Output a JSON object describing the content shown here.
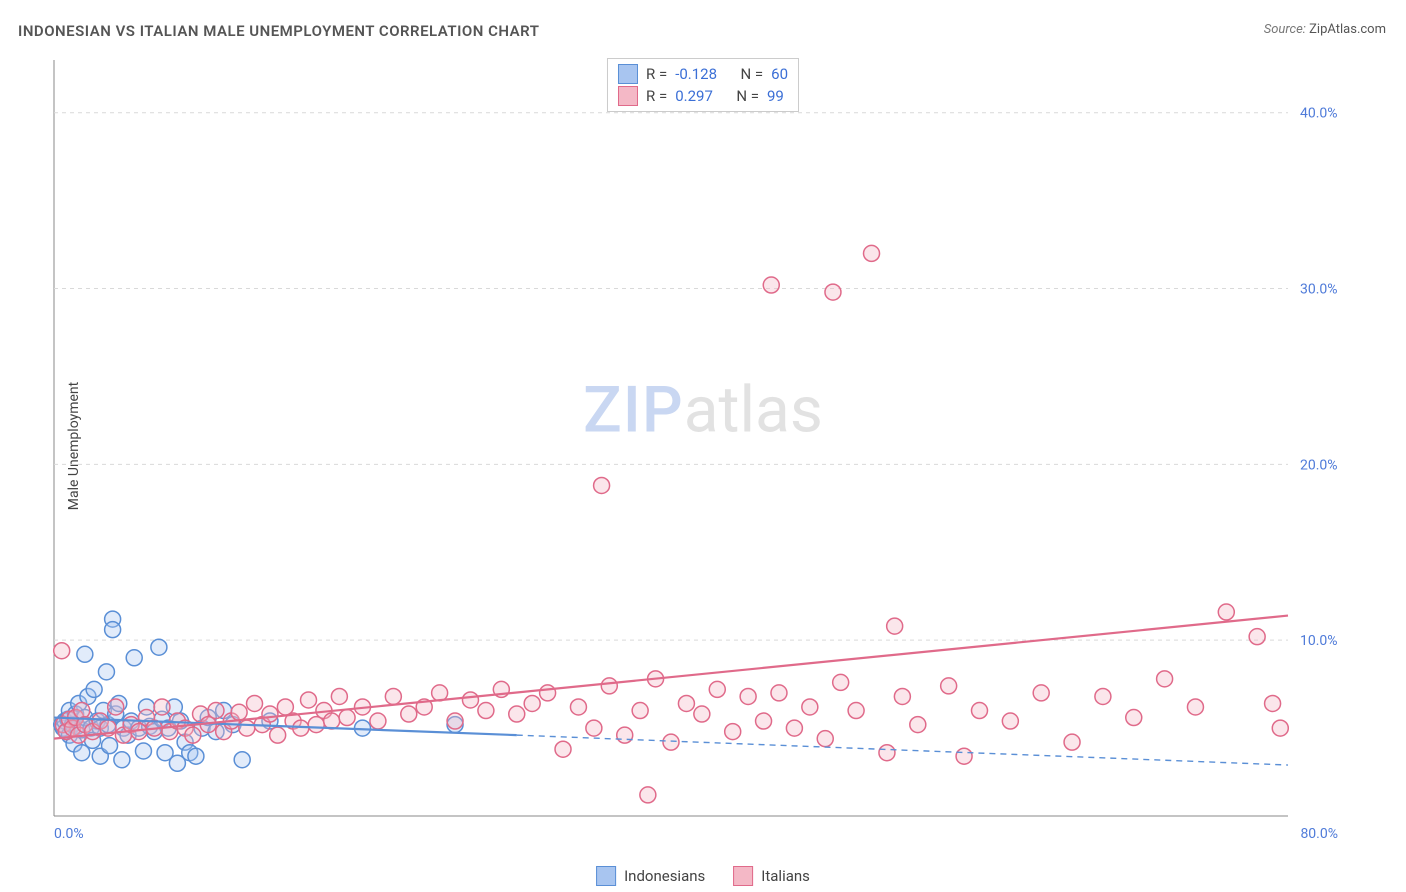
{
  "title": "INDONESIAN VS ITALIAN MALE UNEMPLOYMENT CORRELATION CHART",
  "source_label": "Source:",
  "source_value": "ZipAtlas.com",
  "watermark_zip": "ZIP",
  "watermark_atlas": "atlas",
  "chart": {
    "type": "scatter",
    "ylabel": "Male Unemployment",
    "xlim": [
      0,
      80
    ],
    "ylim": [
      0,
      43
    ],
    "xticks": [
      {
        "v": 0,
        "label": "0.0%"
      },
      {
        "v": 80,
        "label": "80.0%"
      }
    ],
    "yticks": [
      {
        "v": 10,
        "label": "10.0%"
      },
      {
        "v": 20,
        "label": "20.0%"
      },
      {
        "v": 30,
        "label": "30.0%"
      },
      {
        "v": 40,
        "label": "40.0%"
      }
    ],
    "background_color": "#ffffff",
    "grid_color": "#d9d9d9",
    "grid_dash": "4,4",
    "axis_color": "#888888",
    "tick_label_color": "#4f7bd9",
    "label_fontsize": 14,
    "marker_radius": 8,
    "marker_stroke_width": 1.5,
    "marker_fill_opacity": 0.35,
    "trend_line_width": 2.2,
    "legend_bottom": [
      {
        "label": "Indonesians",
        "fill": "#a8c5f0",
        "stroke": "#5a8fd6"
      },
      {
        "label": "Italians",
        "fill": "#f4b8c6",
        "stroke": "#e06a8a"
      }
    ],
    "series": [
      {
        "name": "Indonesians",
        "fill": "#a8c5f0",
        "stroke": "#5a8fd6",
        "R_label": "R =",
        "R": "-0.128",
        "N_label": "N =",
        "N": "60",
        "trend": {
          "x1": 0,
          "y1": 5.6,
          "x2": 30,
          "y2": 4.6,
          "dash_after_x": 30,
          "x3": 80,
          "y3": 2.9,
          "color": "#5a8fd6"
        },
        "points": [
          [
            0.5,
            5.2
          ],
          [
            0.6,
            5.0
          ],
          [
            0.7,
            5.4
          ],
          [
            0.8,
            4.8
          ],
          [
            0.9,
            5.5
          ],
          [
            1.0,
            4.6
          ],
          [
            1.0,
            6.0
          ],
          [
            1.2,
            5.2
          ],
          [
            1.3,
            4.1
          ],
          [
            1.4,
            5.8
          ],
          [
            1.5,
            5.1
          ],
          [
            1.6,
            6.4
          ],
          [
            1.8,
            4.9
          ],
          [
            1.8,
            3.6
          ],
          [
            2.0,
            5.6
          ],
          [
            2.0,
            9.2
          ],
          [
            2.2,
            6.8
          ],
          [
            2.4,
            5.0
          ],
          [
            2.5,
            4.3
          ],
          [
            2.6,
            7.2
          ],
          [
            2.8,
            5.4
          ],
          [
            3.0,
            5.0
          ],
          [
            3.0,
            3.4
          ],
          [
            3.2,
            6.0
          ],
          [
            3.4,
            8.2
          ],
          [
            3.5,
            5.2
          ],
          [
            3.6,
            4.0
          ],
          [
            3.8,
            11.2
          ],
          [
            3.8,
            10.6
          ],
          [
            4.0,
            5.8
          ],
          [
            4.2,
            6.4
          ],
          [
            4.4,
            3.2
          ],
          [
            4.5,
            5.0
          ],
          [
            4.8,
            4.6
          ],
          [
            5.0,
            5.4
          ],
          [
            5.2,
            9.0
          ],
          [
            5.5,
            5.0
          ],
          [
            5.8,
            3.7
          ],
          [
            6.0,
            6.2
          ],
          [
            6.2,
            5.1
          ],
          [
            6.5,
            4.8
          ],
          [
            6.8,
            9.6
          ],
          [
            7.0,
            5.5
          ],
          [
            7.2,
            3.6
          ],
          [
            7.4,
            5.0
          ],
          [
            7.8,
            6.2
          ],
          [
            8.0,
            3.0
          ],
          [
            8.2,
            5.4
          ],
          [
            8.5,
            4.2
          ],
          [
            8.8,
            3.6
          ],
          [
            9.2,
            3.4
          ],
          [
            9.6,
            5.0
          ],
          [
            10.0,
            5.6
          ],
          [
            10.5,
            4.8
          ],
          [
            11.0,
            6.0
          ],
          [
            11.6,
            5.2
          ],
          [
            12.2,
            3.2
          ],
          [
            14.0,
            5.4
          ],
          [
            20.0,
            5.0
          ],
          [
            26.0,
            5.2
          ]
        ]
      },
      {
        "name": "Italians",
        "fill": "#f4b8c6",
        "stroke": "#e06a8a",
        "R_label": "R =",
        "R": "0.297",
        "N_label": "N =",
        "N": "99",
        "trend": {
          "x1": 0,
          "y1": 4.4,
          "x2": 80,
          "y2": 11.4,
          "color": "#e06a8a"
        },
        "points": [
          [
            0.5,
            9.4
          ],
          [
            0.6,
            5.2
          ],
          [
            0.8,
            4.8
          ],
          [
            1.0,
            5.5
          ],
          [
            1.2,
            5.0
          ],
          [
            1.4,
            5.6
          ],
          [
            1.6,
            4.6
          ],
          [
            1.8,
            6.0
          ],
          [
            2.0,
            5.2
          ],
          [
            2.5,
            4.8
          ],
          [
            3.0,
            5.4
          ],
          [
            3.5,
            5.0
          ],
          [
            4.0,
            6.2
          ],
          [
            4.5,
            4.6
          ],
          [
            5.0,
            5.2
          ],
          [
            5.5,
            4.8
          ],
          [
            6.0,
            5.6
          ],
          [
            6.5,
            5.0
          ],
          [
            7.0,
            6.2
          ],
          [
            7.5,
            4.8
          ],
          [
            8.0,
            5.4
          ],
          [
            8.5,
            5.0
          ],
          [
            9.0,
            4.6
          ],
          [
            9.5,
            5.8
          ],
          [
            10.0,
            5.2
          ],
          [
            10.5,
            6.0
          ],
          [
            11.0,
            4.8
          ],
          [
            11.5,
            5.4
          ],
          [
            12.0,
            5.9
          ],
          [
            12.5,
            5.0
          ],
          [
            13.0,
            6.4
          ],
          [
            13.5,
            5.2
          ],
          [
            14.0,
            5.8
          ],
          [
            14.5,
            4.6
          ],
          [
            15.0,
            6.2
          ],
          [
            15.5,
            5.4
          ],
          [
            16.0,
            5.0
          ],
          [
            16.5,
            6.6
          ],
          [
            17.0,
            5.2
          ],
          [
            17.5,
            6.0
          ],
          [
            18.0,
            5.4
          ],
          [
            18.5,
            6.8
          ],
          [
            19.0,
            5.6
          ],
          [
            20.0,
            6.2
          ],
          [
            21.0,
            5.4
          ],
          [
            22.0,
            6.8
          ],
          [
            23.0,
            5.8
          ],
          [
            24.0,
            6.2
          ],
          [
            25.0,
            7.0
          ],
          [
            26.0,
            5.4
          ],
          [
            27.0,
            6.6
          ],
          [
            28.0,
            6.0
          ],
          [
            29.0,
            7.2
          ],
          [
            30.0,
            5.8
          ],
          [
            31.0,
            6.4
          ],
          [
            32.0,
            7.0
          ],
          [
            33.0,
            3.8
          ],
          [
            34.0,
            6.2
          ],
          [
            35.0,
            5.0
          ],
          [
            35.5,
            18.8
          ],
          [
            36.0,
            7.4
          ],
          [
            37.0,
            4.6
          ],
          [
            38.0,
            6.0
          ],
          [
            38.5,
            1.2
          ],
          [
            39.0,
            7.8
          ],
          [
            40.0,
            4.2
          ],
          [
            41.0,
            6.4
          ],
          [
            42.0,
            5.8
          ],
          [
            43.0,
            7.2
          ],
          [
            44.0,
            4.8
          ],
          [
            45.0,
            6.8
          ],
          [
            46.0,
            5.4
          ],
          [
            46.5,
            30.2
          ],
          [
            47.0,
            7.0
          ],
          [
            48.0,
            5.0
          ],
          [
            49.0,
            6.2
          ],
          [
            50.0,
            4.4
          ],
          [
            50.5,
            29.8
          ],
          [
            51.0,
            7.6
          ],
          [
            52.0,
            6.0
          ],
          [
            53.0,
            32.0
          ],
          [
            54.0,
            3.6
          ],
          [
            54.5,
            10.8
          ],
          [
            55.0,
            6.8
          ],
          [
            56.0,
            5.2
          ],
          [
            58.0,
            7.4
          ],
          [
            59.0,
            3.4
          ],
          [
            60.0,
            6.0
          ],
          [
            62.0,
            5.4
          ],
          [
            64.0,
            7.0
          ],
          [
            66.0,
            4.2
          ],
          [
            68.0,
            6.8
          ],
          [
            70.0,
            5.6
          ],
          [
            72.0,
            7.8
          ],
          [
            74.0,
            6.2
          ],
          [
            76.0,
            11.6
          ],
          [
            78.0,
            10.2
          ],
          [
            79.0,
            6.4
          ],
          [
            79.5,
            5.0
          ]
        ]
      }
    ]
  }
}
